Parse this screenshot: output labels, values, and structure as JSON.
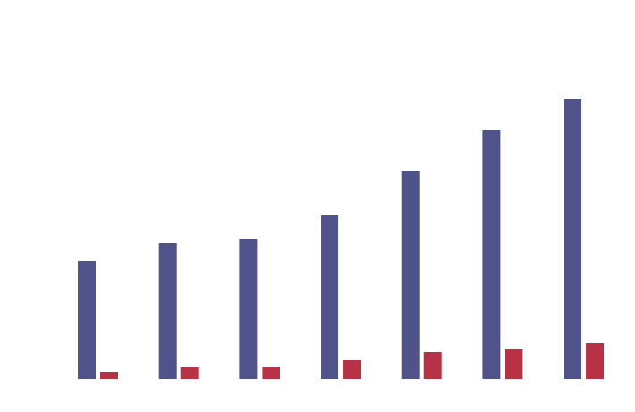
{
  "chart_data": {
    "type": "bar",
    "categories": [
      null,
      null,
      null,
      null,
      null,
      null,
      null
    ],
    "series": [
      {
        "color": "#50528a",
        "values": [
          132,
          152,
          157,
          184,
          233,
          279,
          314
        ]
      },
      {
        "color": "#b83246",
        "values": [
          8,
          13,
          14,
          21,
          30,
          34,
          40
        ]
      }
    ],
    "ylim": [
      0,
      350
    ]
  }
}
